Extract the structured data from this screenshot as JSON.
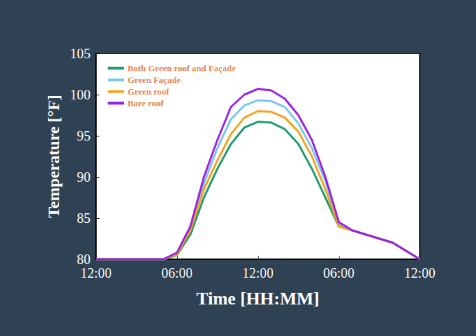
{
  "chart_data": {
    "type": "line",
    "x_label": "Time [HH:MM]",
    "y_label": "Temperature [°F]",
    "categories": [
      "12:00",
      null,
      null,
      null,
      null,
      null,
      "06:00",
      null,
      null,
      null,
      null,
      null,
      "12:00",
      null,
      null,
      null,
      null,
      null,
      "06:00",
      null,
      null,
      null,
      null,
      null,
      "12:00"
    ],
    "series": [
      {
        "name": "Both Green roof and Façade",
        "color": "#1e9b6f",
        "values": [
          80,
          80,
          80,
          80,
          80,
          80,
          80.5,
          83,
          87.5,
          91,
          94,
          96,
          96.7,
          96.6,
          95.8,
          94,
          91,
          87.5,
          84,
          83.5,
          83,
          82.5,
          82,
          81,
          80
        ]
      },
      {
        "name": "Green Façade",
        "color": "#7cc6ee",
        "values": [
          80,
          80,
          80,
          80,
          80,
          80,
          80.7,
          83.8,
          89.2,
          93.5,
          97,
          98.7,
          99.3,
          99.2,
          98.5,
          96.5,
          93.5,
          89.5,
          84.2,
          83.5,
          83,
          82.5,
          82,
          81,
          80
        ]
      },
      {
        "name": "Green roof",
        "color": "#f3a21f",
        "values": [
          80,
          80,
          80,
          80,
          80,
          80,
          80.6,
          83.5,
          88.5,
          92,
          95.2,
          97.2,
          98,
          97.9,
          97.2,
          95.5,
          92.5,
          88.5,
          84,
          83.5,
          83,
          82.5,
          82,
          81,
          80
        ]
      },
      {
        "name": "Bare roof",
        "color": "#9a22e6",
        "values": [
          80,
          80,
          80,
          80,
          80,
          80,
          80.8,
          84,
          90,
          94.5,
          98.5,
          100,
          100.7,
          100.5,
          99.5,
          97.5,
          94.5,
          90,
          84.5,
          83.5,
          83,
          82.5,
          82,
          81,
          80
        ]
      }
    ],
    "ylim": [
      80,
      105
    ],
    "yticks": [
      80,
      85,
      90,
      95,
      100,
      105
    ],
    "grid": false,
    "legend": "upper left"
  }
}
